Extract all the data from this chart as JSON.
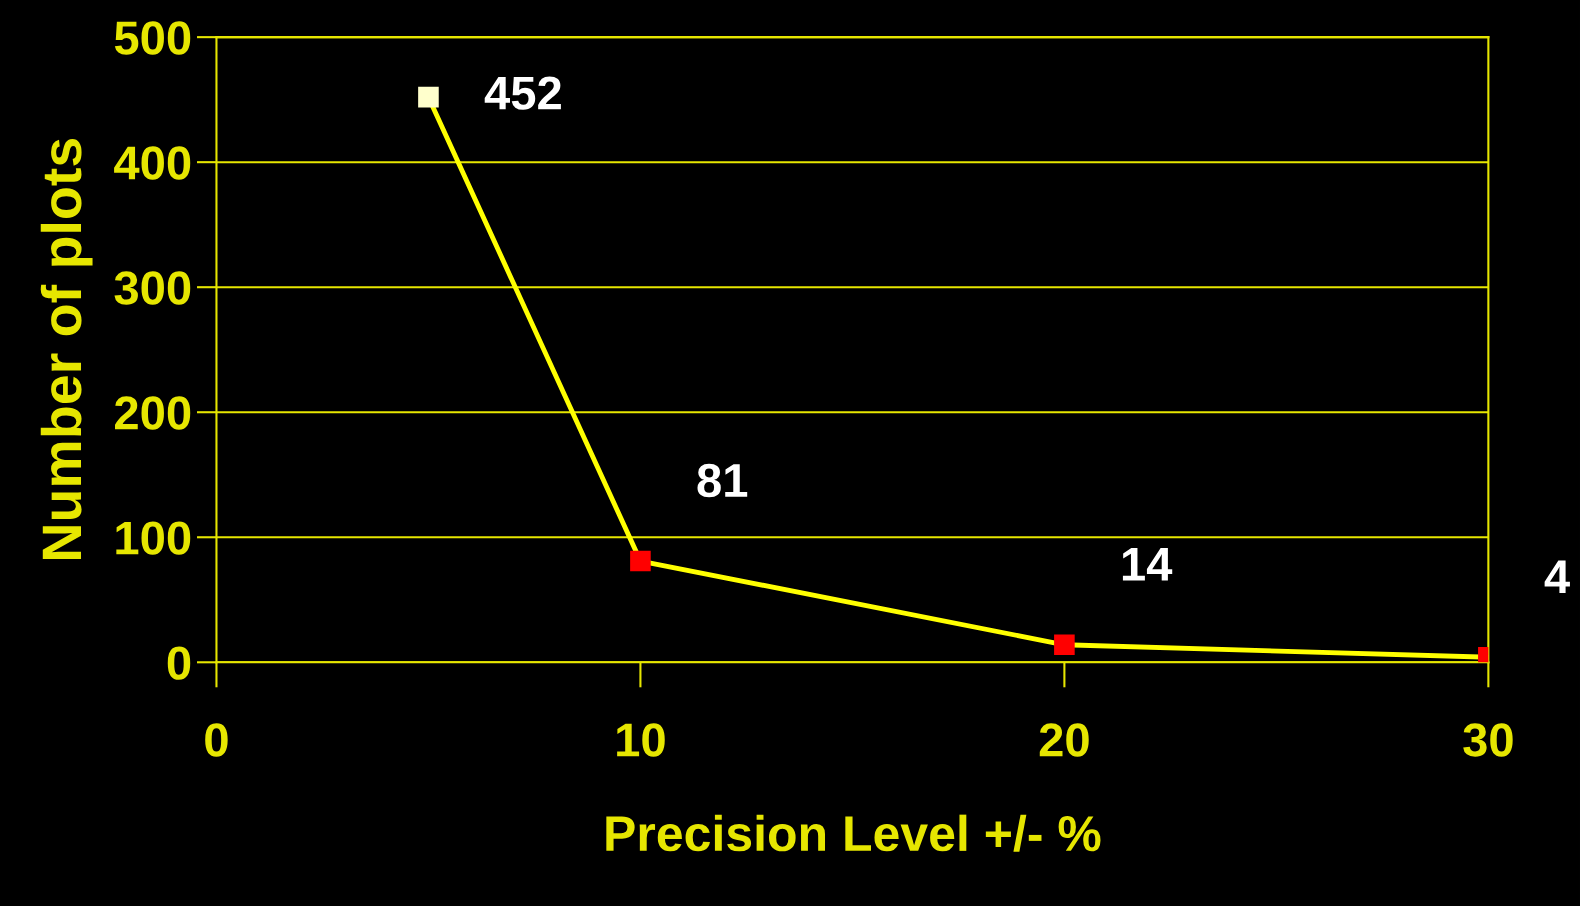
{
  "chart_data": {
    "type": "line",
    "xlabel": "Precision Level +/- %",
    "ylabel": "Number of plots",
    "x": [
      5,
      10,
      20,
      30
    ],
    "series": [
      {
        "color": "#ffff00",
        "values": [
          452,
          81,
          14,
          4
        ],
        "colors": [
          "#ffffcc",
          "#ff0000",
          "#ff0000",
          "#ff0000"
        ]
      }
    ],
    "value_labels": [
      "452",
      "81",
      "14",
      "4"
    ],
    "xlim": [
      0,
      30
    ],
    "xticks": [
      0,
      10,
      20,
      30
    ],
    "ylim": [
      0,
      500
    ],
    "yticks": [
      0,
      100,
      200,
      300,
      400,
      500
    ],
    "grid": "y",
    "marker": "square",
    "line_style": "solid"
  }
}
